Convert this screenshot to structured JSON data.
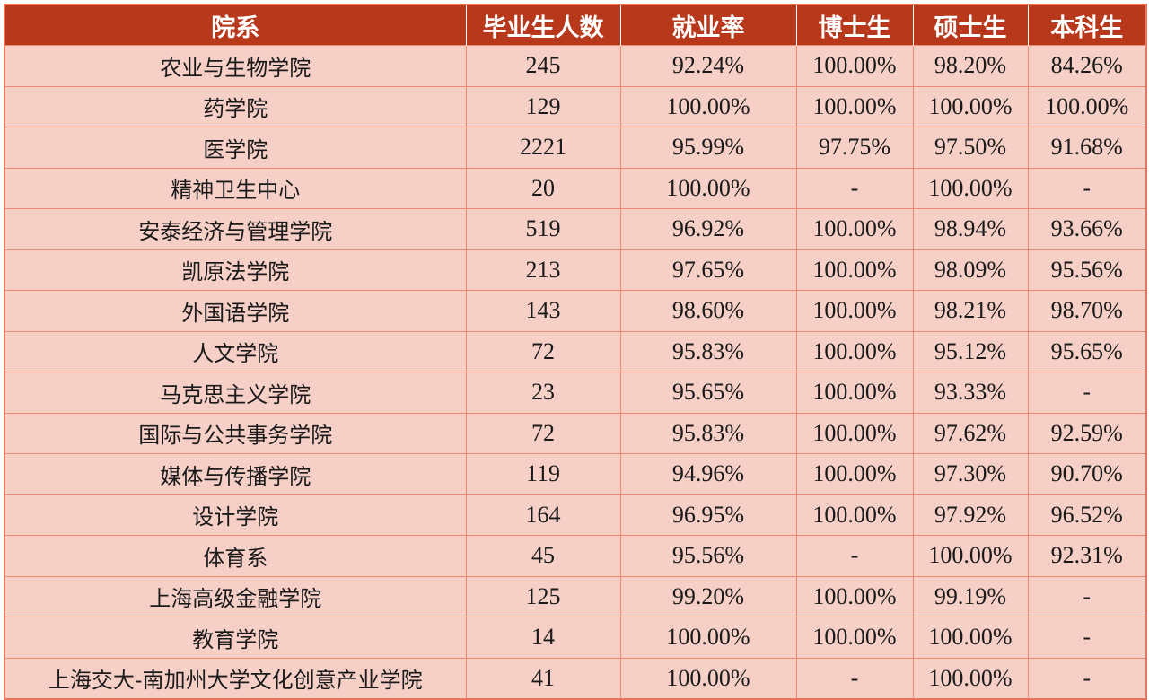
{
  "table": {
    "headers": [
      "院系",
      "毕业生人数",
      "就业率",
      "博士生",
      "硕士生",
      "本科生"
    ],
    "rows": [
      [
        "农业与生物学院",
        "245",
        "92.24%",
        "100.00%",
        "98.20%",
        "84.26%"
      ],
      [
        "药学院",
        "129",
        "100.00%",
        "100.00%",
        "100.00%",
        "100.00%"
      ],
      [
        "医学院",
        "2221",
        "95.99%",
        "97.75%",
        "97.50%",
        "91.68%"
      ],
      [
        "精神卫生中心",
        "20",
        "100.00%",
        "-",
        "100.00%",
        "-"
      ],
      [
        "安泰经济与管理学院",
        "519",
        "96.92%",
        "100.00%",
        "98.94%",
        "93.66%"
      ],
      [
        "凯原法学院",
        "213",
        "97.65%",
        "100.00%",
        "98.09%",
        "95.56%"
      ],
      [
        "外国语学院",
        "143",
        "98.60%",
        "100.00%",
        "98.21%",
        "98.70%"
      ],
      [
        "人文学院",
        "72",
        "95.83%",
        "100.00%",
        "95.12%",
        "95.65%"
      ],
      [
        "马克思主义学院",
        "23",
        "95.65%",
        "100.00%",
        "93.33%",
        "-"
      ],
      [
        "国际与公共事务学院",
        "72",
        "95.83%",
        "100.00%",
        "97.62%",
        "92.59%"
      ],
      [
        "媒体与传播学院",
        "119",
        "94.96%",
        "100.00%",
        "97.30%",
        "90.70%"
      ],
      [
        "设计学院",
        "164",
        "96.95%",
        "100.00%",
        "97.92%",
        "96.52%"
      ],
      [
        "体育系",
        "45",
        "95.56%",
        "-",
        "100.00%",
        "92.31%"
      ],
      [
        "上海高级金融学院",
        "125",
        "99.20%",
        "100.00%",
        "99.19%",
        "-"
      ],
      [
        "教育学院",
        "14",
        "100.00%",
        "100.00%",
        "100.00%",
        "-"
      ],
      [
        "上海交大-南加州大学文化创意产业学院",
        "41",
        "100.00%",
        "-",
        "100.00%",
        "-"
      ]
    ]
  },
  "colors": {
    "header_bg": "#b8381c",
    "header_text": "#ffffff",
    "cell_bg": "#f6cfc6",
    "grid_line": "#ec8a72"
  }
}
